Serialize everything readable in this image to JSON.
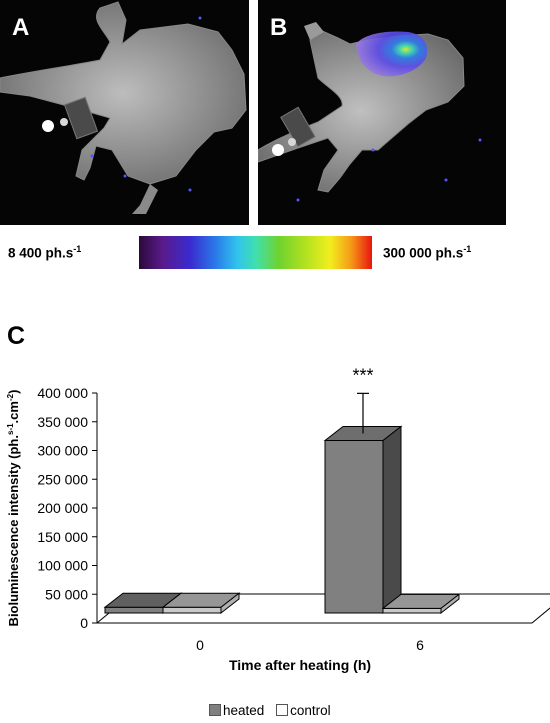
{
  "panels": {
    "a_label": "A",
    "b_label": "B",
    "c_label": "C"
  },
  "colorbar": {
    "min_value": "8 400 ph.s",
    "min_sup": "-1",
    "max_value": "300 000 ph.s",
    "max_sup": "-1"
  },
  "chart_data": {
    "type": "bar",
    "categories": [
      "0",
      "6"
    ],
    "series": [
      {
        "name": "heated",
        "values": [
          10000,
          300000
        ],
        "errors": [
          4000,
          82000
        ],
        "color": "#808080"
      },
      {
        "name": "control",
        "values": [
          10000,
          8000
        ],
        "errors": [
          5000,
          5000
        ],
        "color": "#c8c8c8"
      }
    ],
    "ylim": [
      0,
      400000
    ],
    "yticks": [
      0,
      50000,
      100000,
      150000,
      200000,
      250000,
      300000,
      350000,
      400000
    ],
    "ytick_labels": [
      "0",
      "50 000",
      "100 000",
      "150 000",
      "200 000",
      "250 000",
      "300 000",
      "350 000",
      "400 000"
    ],
    "ylabel": "Bioluminescence intensity (ph.",
    "ylabel_sup1": "s-1",
    "ylabel_mid": ".cm",
    "ylabel_sup2": "-2",
    "ylabel_end": ")",
    "xlabel": "Time after heating (h)",
    "annotations": [
      {
        "category": "6",
        "series": "heated",
        "text": "***"
      }
    ],
    "legend_position": "bottom",
    "grid": false
  }
}
